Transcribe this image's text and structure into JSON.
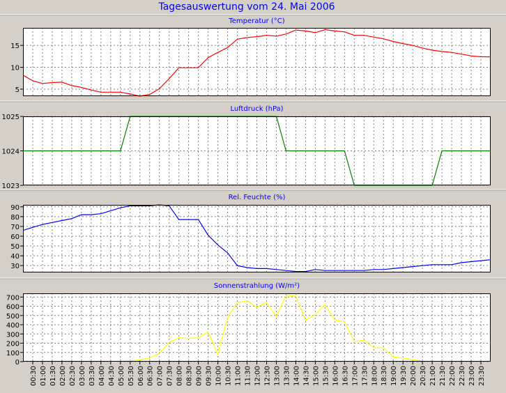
{
  "title": "Tagesauswertung vom 24. Mai 2006",
  "time_labels": [
    "00:30",
    "01:00",
    "01:30",
    "02:00",
    "02:30",
    "03:00",
    "03:30",
    "04:00",
    "04:30",
    "05:00",
    "05:30",
    "06:00",
    "06:30",
    "07:00",
    "07:30",
    "08:00",
    "08:30",
    "09:00",
    "09:30",
    "10:00",
    "10:30",
    "11:00",
    "11:30",
    "12:00",
    "12:30",
    "13:00",
    "13:30",
    "14:00",
    "14:30",
    "15:00",
    "15:30",
    "16:00",
    "16:30",
    "17:00",
    "17:30",
    "18:00",
    "18:30",
    "19:00",
    "19:30",
    "20:00",
    "20:30",
    "21:00",
    "21:30",
    "22:00",
    "22:30",
    "23:00",
    "23:30"
  ],
  "colors": {
    "background": "#d4d0c8",
    "plot_bg": "#ffffff",
    "grid": "#808080",
    "title": "#0000ff",
    "temperature": "#ff0000",
    "pressure": "#008000",
    "humidity": "#0000ff",
    "solar": "#ffff00"
  },
  "chart_data": [
    {
      "type": "line",
      "title": "Temperatur (°C)",
      "ylim": [
        3.4,
        19
      ],
      "yticks": [
        5,
        10,
        15
      ],
      "grid": true,
      "x": [
        "00:00",
        "00:30",
        "01:00",
        "01:30",
        "02:00",
        "02:30",
        "03:00",
        "03:30",
        "04:00",
        "04:30",
        "05:00",
        "05:30",
        "06:00",
        "06:30",
        "07:00",
        "07:30",
        "08:00",
        "08:30",
        "09:00",
        "09:30",
        "10:00",
        "10:30",
        "11:00",
        "11:30",
        "12:00",
        "12:30",
        "13:00",
        "13:30",
        "14:00",
        "14:30",
        "15:00",
        "15:30",
        "16:00",
        "16:30",
        "17:00",
        "17:30",
        "18:00",
        "18:30",
        "19:00",
        "19:30",
        "20:00",
        "20:30",
        "21:00",
        "21:30",
        "22:00",
        "22:30",
        "23:00",
        "23:30",
        "24:00"
      ],
      "series": [
        {
          "values": [
            8.2,
            6.9,
            6.3,
            6.5,
            6.6,
            5.8,
            5.4,
            4.8,
            4.3,
            4.3,
            4.3,
            3.9,
            3.4,
            3.8,
            5.1,
            7.4,
            9.9,
            9.9,
            9.9,
            12.2,
            13.4,
            14.5,
            16.4,
            16.8,
            17.0,
            17.3,
            17.1,
            17.6,
            18.5,
            18.3,
            17.9,
            18.6,
            18.3,
            18.1,
            17.3,
            17.3,
            16.9,
            16.5,
            15.9,
            15.4,
            15.0,
            14.4,
            13.9,
            13.6,
            13.4,
            13.0,
            12.6,
            12.4,
            12.4
          ]
        }
      ]
    },
    {
      "type": "line",
      "title": "Luftdruck (hPa)",
      "ylim": [
        1023,
        1025
      ],
      "yticks": [
        1023,
        1024,
        1025
      ],
      "grid": true,
      "x": [
        "00:00",
        "05:00",
        "05:30",
        "13:00",
        "13:30",
        "16:30",
        "17:00",
        "21:00",
        "21:30",
        "24:00"
      ],
      "series": [
        {
          "values": [
            1024,
            1024,
            1025,
            1025,
            1024,
            1024,
            1023,
            1023,
            1024,
            1024
          ]
        }
      ]
    },
    {
      "type": "line",
      "title": "Rel. Feuchte (%)",
      "ylim": [
        23,
        92
      ],
      "yticks": [
        30,
        40,
        50,
        60,
        70,
        80,
        90
      ],
      "grid": true,
      "x": [
        "00:00",
        "00:30",
        "01:00",
        "01:30",
        "02:00",
        "02:30",
        "03:00",
        "03:30",
        "04:00",
        "04:30",
        "05:00",
        "05:30",
        "06:00",
        "06:30",
        "07:00",
        "07:30",
        "08:00",
        "08:30",
        "09:00",
        "09:30",
        "10:00",
        "10:30",
        "11:00",
        "11:30",
        "12:00",
        "12:30",
        "13:00",
        "13:30",
        "14:00",
        "14:30",
        "15:00",
        "15:30",
        "16:00",
        "16:30",
        "17:00",
        "17:30",
        "18:00",
        "18:30",
        "19:00",
        "19:30",
        "20:00",
        "20:30",
        "21:00",
        "21:30",
        "22:00",
        "22:30",
        "23:00",
        "23:30",
        "24:00"
      ],
      "series": [
        {
          "values": [
            66,
            69,
            72,
            74,
            76,
            78,
            82,
            82,
            83,
            86,
            89,
            91,
            91,
            91,
            92,
            91,
            77,
            77,
            77,
            61,
            51,
            43,
            30,
            28,
            27,
            27,
            26,
            25,
            24,
            24,
            26,
            25,
            25,
            25,
            25,
            25,
            26,
            26,
            27,
            28,
            29,
            30,
            31,
            31,
            31,
            33,
            34,
            35,
            36
          ]
        }
      ]
    },
    {
      "type": "line",
      "title": "Sonnenstrahlung (W/m²)",
      "ylim": [
        0,
        740
      ],
      "yticks": [
        0,
        100,
        200,
        300,
        400,
        500,
        600,
        700
      ],
      "grid": true,
      "x": [
        "04:30",
        "05:00",
        "05:30",
        "06:00",
        "06:30",
        "07:00",
        "07:30",
        "08:00",
        "08:30",
        "09:00",
        "09:30",
        "10:00",
        "10:30",
        "11:00",
        "11:30",
        "12:00",
        "12:30",
        "13:00",
        "13:30",
        "14:00",
        "14:30",
        "15:00",
        "15:30",
        "16:00",
        "16:30",
        "17:00",
        "17:30",
        "18:00",
        "18:30",
        "19:00",
        "19:30",
        "20:00",
        "20:30",
        "21:00",
        "21:30"
      ],
      "series": [
        {
          "values": [
            0,
            3,
            8,
            20,
            40,
            90,
            210,
            260,
            250,
            260,
            320,
            80,
            480,
            640,
            660,
            590,
            640,
            490,
            720,
            710,
            450,
            510,
            620,
            450,
            430,
            220,
            230,
            150,
            150,
            50,
            40,
            20,
            5,
            2,
            0
          ]
        }
      ]
    }
  ]
}
